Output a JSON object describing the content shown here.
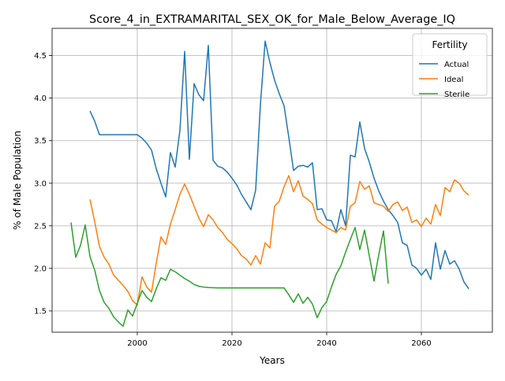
{
  "chart_data": {
    "type": "line",
    "title": "Score_4_in_EXTRAMARITAL_SEX_OK_for_Male_Below_Average_IQ",
    "xlabel": "Years",
    "ylabel": "% of Male Population",
    "xlim": [
      1982,
      2075
    ],
    "ylim": [
      1.25,
      4.82
    ],
    "xticks": [
      2000,
      2020,
      2040,
      2060
    ],
    "yticks": [
      1.5,
      2.0,
      2.5,
      3.0,
      3.5,
      4.0,
      4.5
    ],
    "grid": true,
    "legend": {
      "title": "Fertility",
      "placement": "top-right"
    },
    "series": [
      {
        "name": "Actual",
        "color": "#1f77b4",
        "points": [
          [
            1990,
            3.85
          ],
          [
            1991,
            3.73
          ],
          [
            1992,
            3.57
          ],
          [
            1993,
            3.57
          ],
          [
            1994,
            3.57
          ],
          [
            1995,
            3.57
          ],
          [
            1996,
            3.57
          ],
          [
            1997,
            3.57
          ],
          [
            1998,
            3.57
          ],
          [
            1999,
            3.57
          ],
          [
            2000,
            3.57
          ],
          [
            2001,
            3.53
          ],
          [
            2002,
            3.47
          ],
          [
            2003,
            3.39
          ],
          [
            2004,
            3.17
          ],
          [
            2005,
            3.0
          ],
          [
            2006,
            2.84
          ],
          [
            2007,
            3.36
          ],
          [
            2008,
            3.19
          ],
          [
            2009,
            3.62
          ],
          [
            2010,
            4.55
          ],
          [
            2011,
            3.28
          ],
          [
            2012,
            4.17
          ],
          [
            2013,
            4.04
          ],
          [
            2014,
            3.97
          ],
          [
            2015,
            4.62
          ],
          [
            2016,
            3.27
          ],
          [
            2017,
            3.2
          ],
          [
            2018,
            3.18
          ],
          [
            2019,
            3.13
          ],
          [
            2020,
            3.06
          ],
          [
            2021,
            2.98
          ],
          [
            2022,
            2.87
          ],
          [
            2023,
            2.78
          ],
          [
            2024,
            2.69
          ],
          [
            2025,
            2.92
          ],
          [
            2026,
            3.92
          ],
          [
            2027,
            4.67
          ],
          [
            2028,
            4.42
          ],
          [
            2029,
            4.21
          ],
          [
            2030,
            4.05
          ],
          [
            2031,
            3.91
          ],
          [
            2032,
            3.54
          ],
          [
            2033,
            3.15
          ],
          [
            2034,
            3.2
          ],
          [
            2035,
            3.21
          ],
          [
            2036,
            3.19
          ],
          [
            2037,
            3.24
          ],
          [
            2038,
            2.69
          ],
          [
            2039,
            2.7
          ],
          [
            2040,
            2.57
          ],
          [
            2041,
            2.56
          ],
          [
            2042,
            2.43
          ],
          [
            2043,
            2.69
          ],
          [
            2044,
            2.5
          ],
          [
            2045,
            3.33
          ],
          [
            2046,
            3.31
          ],
          [
            2047,
            3.72
          ],
          [
            2048,
            3.41
          ],
          [
            2049,
            3.25
          ],
          [
            2050,
            3.06
          ],
          [
            2051,
            2.91
          ],
          [
            2052,
            2.79
          ],
          [
            2053,
            2.69
          ],
          [
            2054,
            2.62
          ],
          [
            2055,
            2.54
          ],
          [
            2056,
            2.3
          ],
          [
            2057,
            2.27
          ],
          [
            2058,
            2.04
          ],
          [
            2059,
            2.0
          ],
          [
            2060,
            1.92
          ],
          [
            2061,
            1.99
          ],
          [
            2062,
            1.87
          ],
          [
            2063,
            2.3
          ],
          [
            2064,
            1.99
          ],
          [
            2065,
            2.21
          ],
          [
            2066,
            2.05
          ],
          [
            2067,
            2.09
          ],
          [
            2068,
            1.99
          ],
          [
            2069,
            1.84
          ],
          [
            2070,
            1.76
          ]
        ]
      },
      {
        "name": "Ideal",
        "color": "#ff7f0e",
        "points": [
          [
            1990,
            2.81
          ],
          [
            1991,
            2.55
          ],
          [
            1992,
            2.26
          ],
          [
            1993,
            2.13
          ],
          [
            1994,
            2.05
          ],
          [
            1995,
            1.92
          ],
          [
            1996,
            1.86
          ],
          [
            1997,
            1.8
          ],
          [
            1998,
            1.73
          ],
          [
            1999,
            1.62
          ],
          [
            2000,
            1.57
          ],
          [
            2001,
            1.9
          ],
          [
            2002,
            1.78
          ],
          [
            2003,
            1.72
          ],
          [
            2004,
            2.06
          ],
          [
            2005,
            2.37
          ],
          [
            2006,
            2.28
          ],
          [
            2007,
            2.52
          ],
          [
            2008,
            2.69
          ],
          [
            2009,
            2.87
          ],
          [
            2010,
            2.99
          ],
          [
            2011,
            2.87
          ],
          [
            2012,
            2.73
          ],
          [
            2013,
            2.59
          ],
          [
            2014,
            2.49
          ],
          [
            2015,
            2.63
          ],
          [
            2016,
            2.57
          ],
          [
            2017,
            2.48
          ],
          [
            2018,
            2.42
          ],
          [
            2019,
            2.34
          ],
          [
            2020,
            2.29
          ],
          [
            2021,
            2.23
          ],
          [
            2022,
            2.15
          ],
          [
            2023,
            2.11
          ],
          [
            2024,
            2.04
          ],
          [
            2025,
            2.15
          ],
          [
            2026,
            2.05
          ],
          [
            2027,
            2.3
          ],
          [
            2028,
            2.24
          ],
          [
            2029,
            2.73
          ],
          [
            2030,
            2.79
          ],
          [
            2031,
            2.96
          ],
          [
            2032,
            3.09
          ],
          [
            2033,
            2.9
          ],
          [
            2034,
            3.03
          ],
          [
            2035,
            2.85
          ],
          [
            2036,
            2.81
          ],
          [
            2037,
            2.76
          ],
          [
            2038,
            2.57
          ],
          [
            2039,
            2.52
          ],
          [
            2040,
            2.48
          ],
          [
            2041,
            2.45
          ],
          [
            2042,
            2.42
          ],
          [
            2043,
            2.48
          ],
          [
            2044,
            2.45
          ],
          [
            2045,
            2.73
          ],
          [
            2046,
            2.77
          ],
          [
            2047,
            3.02
          ],
          [
            2048,
            2.93
          ],
          [
            2049,
            2.97
          ],
          [
            2050,
            2.77
          ],
          [
            2051,
            2.75
          ],
          [
            2052,
            2.73
          ],
          [
            2053,
            2.67
          ],
          [
            2054,
            2.75
          ],
          [
            2055,
            2.78
          ],
          [
            2056,
            2.68
          ],
          [
            2057,
            2.72
          ],
          [
            2058,
            2.54
          ],
          [
            2059,
            2.57
          ],
          [
            2060,
            2.49
          ],
          [
            2061,
            2.59
          ],
          [
            2062,
            2.52
          ],
          [
            2063,
            2.75
          ],
          [
            2064,
            2.62
          ],
          [
            2065,
            2.95
          ],
          [
            2066,
            2.9
          ],
          [
            2067,
            3.04
          ],
          [
            2068,
            3.0
          ],
          [
            2069,
            2.91
          ],
          [
            2070,
            2.86
          ]
        ]
      },
      {
        "name": "Sterile",
        "color": "#2ca02c",
        "points": [
          [
            1986,
            2.54
          ],
          [
            1987,
            2.13
          ],
          [
            1988,
            2.27
          ],
          [
            1989,
            2.51
          ],
          [
            1990,
            2.14
          ],
          [
            1991,
            1.98
          ],
          [
            1992,
            1.74
          ],
          [
            1993,
            1.6
          ],
          [
            1994,
            1.53
          ],
          [
            1995,
            1.43
          ],
          [
            1996,
            1.37
          ],
          [
            1997,
            1.32
          ],
          [
            1998,
            1.51
          ],
          [
            1999,
            1.44
          ],
          [
            2000,
            1.59
          ],
          [
            2001,
            1.74
          ],
          [
            2002,
            1.66
          ],
          [
            2003,
            1.61
          ],
          [
            2004,
            1.76
          ],
          [
            2005,
            1.89
          ],
          [
            2006,
            1.86
          ],
          [
            2007,
            1.99
          ],
          [
            2008,
            1.96
          ],
          [
            2009,
            1.92
          ],
          [
            2010,
            1.88
          ],
          [
            2011,
            1.85
          ],
          [
            2012,
            1.81
          ],
          [
            2013,
            1.79
          ],
          [
            2014,
            1.78
          ],
          [
            2015,
            1.775
          ],
          [
            2016,
            1.772
          ],
          [
            2017,
            1.77
          ],
          [
            2018,
            1.77
          ],
          [
            2019,
            1.77
          ],
          [
            2020,
            1.77
          ],
          [
            2021,
            1.77
          ],
          [
            2022,
            1.77
          ],
          [
            2023,
            1.77
          ],
          [
            2024,
            1.77
          ],
          [
            2025,
            1.77
          ],
          [
            2026,
            1.77
          ],
          [
            2027,
            1.77
          ],
          [
            2028,
            1.77
          ],
          [
            2029,
            1.77
          ],
          [
            2030,
            1.77
          ],
          [
            2031,
            1.77
          ],
          [
            2032,
            1.69
          ],
          [
            2033,
            1.6
          ],
          [
            2034,
            1.7
          ],
          [
            2035,
            1.59
          ],
          [
            2036,
            1.66
          ],
          [
            2037,
            1.58
          ],
          [
            2038,
            1.42
          ],
          [
            2039,
            1.54
          ],
          [
            2040,
            1.61
          ],
          [
            2041,
            1.78
          ],
          [
            2042,
            1.93
          ],
          [
            2043,
            2.03
          ],
          [
            2044,
            2.19
          ],
          [
            2045,
            2.34
          ],
          [
            2046,
            2.48
          ],
          [
            2047,
            2.22
          ],
          [
            2048,
            2.45
          ],
          [
            2049,
            2.15
          ],
          [
            2050,
            1.85
          ],
          [
            2051,
            2.16
          ],
          [
            2052,
            2.44
          ],
          [
            2053,
            1.82
          ]
        ]
      }
    ]
  }
}
